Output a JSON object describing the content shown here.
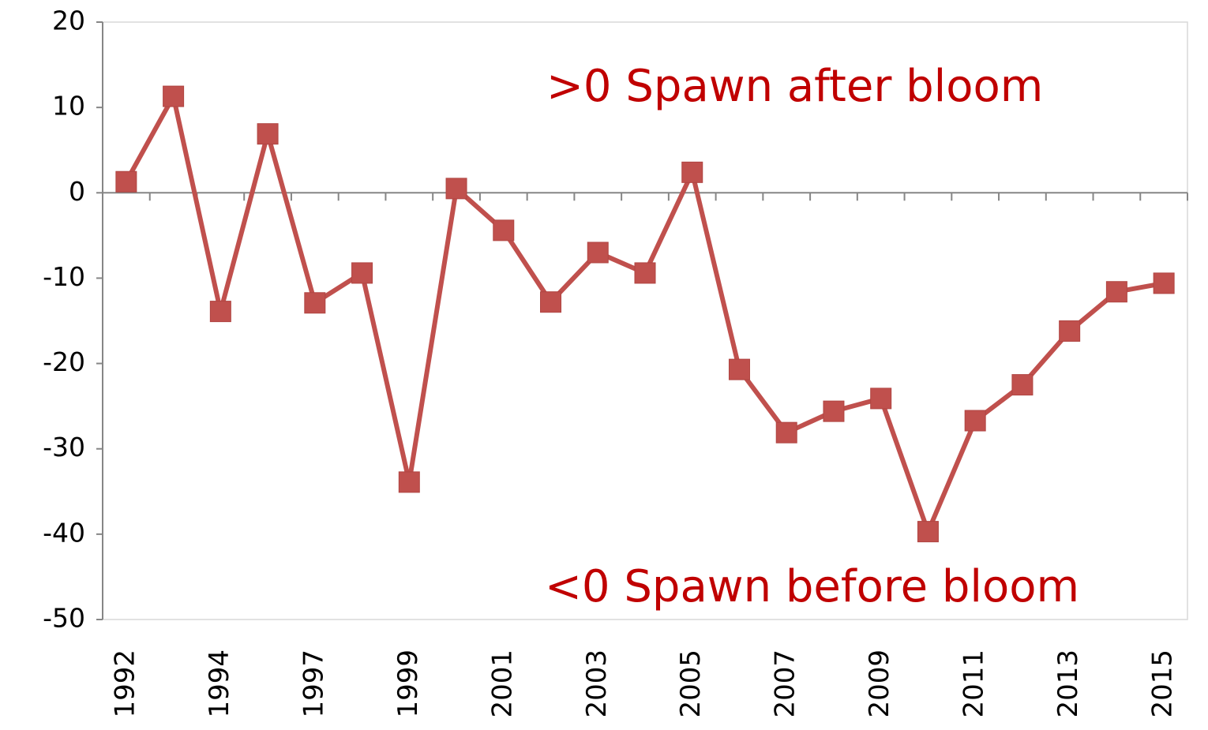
{
  "chart_data": {
    "type": "line",
    "categories": [
      "1992",
      null,
      "1994",
      null,
      "1997",
      null,
      "1999",
      null,
      "2001",
      null,
      "2003",
      null,
      "2005",
      null,
      "2007",
      null,
      "2009",
      null,
      "2011",
      null,
      "2013",
      null,
      "2015"
    ],
    "series": [
      {
        "name": null,
        "color": "#c0504d",
        "values": [
          1.3,
          11.3,
          -13.9,
          6.9,
          -12.9,
          -9.4,
          -33.9,
          0.5,
          -4.4,
          -12.8,
          -7.0,
          -9.4,
          2.4,
          -20.7,
          -28.1,
          -25.6,
          -24.1,
          -39.7,
          -26.7,
          -22.5,
          -16.2,
          -11.6,
          -10.6
        ]
      }
    ],
    "ylim": [
      -50,
      20
    ],
    "yticks": [
      -50,
      -40,
      -30,
      -20,
      -10,
      0,
      10,
      20
    ],
    "annotations": [
      ">0 Spawn after bloom",
      "<0 Spawn before bloom"
    ],
    "annotation_color": "#c00000"
  }
}
